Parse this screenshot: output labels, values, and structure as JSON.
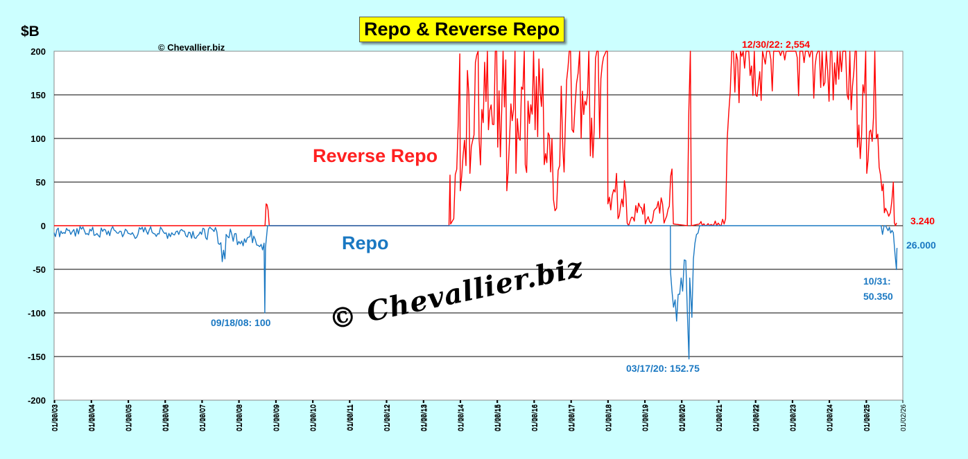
{
  "title": "Repo & Reverse Repo",
  "unit_label": "$B",
  "copyright": "© Chevallier.biz",
  "watermark": "© Chevallier.biz",
  "colors": {
    "reverse_repo": "#ff0000",
    "repo": "#1a78c2",
    "background": "#ccffff",
    "plot": "#ffffff",
    "title_box": "#ffff00"
  },
  "chart_data": {
    "type": "line",
    "title": "Repo & Reverse Repo",
    "ylabel": "$B",
    "ylim": [
      -200,
      200
    ],
    "yticks": [
      200,
      150,
      100,
      50,
      0,
      -50,
      -100,
      -150,
      -200
    ],
    "grid": true,
    "xlim": [
      "2003-01-02",
      "2026-01-02"
    ],
    "xticks": [
      "01/02/03",
      "01/06/03",
      "01/10/03",
      "01/02/04",
      "01/06/04",
      "01/10/04",
      "01/02/05",
      "01/06/05",
      "01/10/05",
      "01/02/06",
      "01/06/06",
      "01/10/06",
      "01/02/07",
      "01/06/07",
      "01/10/07",
      "01/02/08",
      "01/06/08",
      "01/10/08",
      "01/02/09",
      "01/06/09",
      "01/10/09",
      "01/02/10",
      "01/06/10",
      "01/10/10",
      "01/02/11",
      "01/06/11",
      "01/10/11",
      "01/02/12",
      "01/06/12",
      "01/10/12",
      "01/02/13",
      "01/06/13",
      "01/10/13",
      "01/02/14",
      "01/06/14",
      "01/10/14",
      "01/02/15",
      "01/06/15",
      "01/10/15",
      "01/02/16",
      "01/06/16",
      "01/10/16",
      "01/02/17",
      "01/06/17",
      "01/10/17",
      "01/02/18",
      "01/06/18",
      "01/10/18",
      "01/02/19",
      "01/06/19",
      "01/10/19",
      "01/02/20",
      "01/06/20",
      "01/10/20",
      "01/02/21",
      "01/06/21",
      "01/10/21",
      "01/02/22",
      "01/06/22",
      "01/10/22",
      "01/02/23",
      "01/06/23",
      "01/10/23",
      "01/02/24",
      "01/06/24",
      "01/10/24",
      "01/02/25",
      "01/06/25",
      "01/10/25",
      "01/02/26"
    ],
    "series": [
      {
        "name": "Reverse Repo",
        "color": "#ff0000",
        "points": [
          [
            "2003-01-02",
            0
          ],
          [
            "2008-09-20",
            0
          ],
          [
            "2008-10-01",
            25
          ],
          [
            "2008-10-10",
            24
          ],
          [
            "2008-10-20",
            18
          ],
          [
            "2008-11-01",
            0
          ],
          [
            "2013-09-15",
            0
          ],
          [
            "2013-09-25",
            58
          ],
          [
            "2013-10-01",
            2
          ],
          [
            "2013-11-01",
            8
          ],
          [
            "2013-12-31",
            197
          ],
          [
            "2014-01-05",
            40
          ],
          [
            "2014-02-01",
            80
          ],
          [
            "2014-03-31",
            150
          ],
          [
            "2014-04-10",
            60
          ],
          [
            "2014-06-30",
            200
          ],
          [
            "2014-07-10",
            100
          ],
          [
            "2014-09-30",
            200
          ],
          [
            "2014-10-10",
            110
          ],
          [
            "2014-12-31",
            200
          ],
          [
            "2015-01-10",
            90
          ],
          [
            "2015-03-31",
            190
          ],
          [
            "2015-04-10",
            40
          ],
          [
            "2015-06-30",
            200
          ],
          [
            "2015-07-10",
            60
          ],
          [
            "2015-09-30",
            200
          ],
          [
            "2015-10-10",
            70
          ],
          [
            "2015-12-31",
            200
          ],
          [
            "2016-01-15",
            110
          ],
          [
            "2016-03-31",
            180
          ],
          [
            "2016-04-15",
            70
          ],
          [
            "2016-06-30",
            100
          ],
          [
            "2016-07-15",
            30
          ],
          [
            "2016-08-15",
            20
          ],
          [
            "2016-09-30",
            160
          ],
          [
            "2016-10-15",
            90
          ],
          [
            "2016-12-31",
            200
          ],
          [
            "2017-01-15",
            110
          ],
          [
            "2017-03-31",
            200
          ],
          [
            "2017-04-15",
            100
          ],
          [
            "2017-06-30",
            200
          ],
          [
            "2017-07-15",
            80
          ],
          [
            "2017-09-30",
            200
          ],
          [
            "2017-10-15",
            100
          ],
          [
            "2017-12-31",
            200
          ],
          [
            "2018-01-05",
            25
          ],
          [
            "2018-03-31",
            60
          ],
          [
            "2018-04-15",
            8
          ],
          [
            "2018-06-30",
            40
          ],
          [
            "2018-07-15",
            3
          ],
          [
            "2018-12-31",
            25
          ],
          [
            "2019-01-10",
            2
          ],
          [
            "2019-06-30",
            25
          ],
          [
            "2019-07-15",
            3
          ],
          [
            "2019-10-01",
            65
          ],
          [
            "2019-10-15",
            2
          ],
          [
            "2020-03-01",
            0
          ],
          [
            "2020-03-31",
            200
          ],
          [
            "2020-04-10",
            0
          ],
          [
            "2020-06-30",
            2
          ],
          [
            "2020-12-31",
            3
          ],
          [
            "2021-03-15",
            8
          ],
          [
            "2021-03-31",
            100
          ],
          [
            "2021-04-15",
            130
          ],
          [
            "2021-05-15",
            200
          ],
          [
            "2021-06-01",
            200
          ],
          [
            "2024-06-15",
            200
          ],
          [
            "2024-06-30",
            150
          ],
          [
            "2024-09-30",
            200
          ],
          [
            "2024-10-10",
            90
          ],
          [
            "2024-12-31",
            200
          ],
          [
            "2025-01-10",
            60
          ],
          [
            "2025-03-31",
            200
          ],
          [
            "2025-04-15",
            100
          ],
          [
            "2025-06-10",
            40
          ],
          [
            "2025-07-15",
            20
          ],
          [
            "2025-09-01",
            15
          ],
          [
            "2025-09-30",
            50
          ],
          [
            "2025-10-10",
            3.24
          ],
          [
            "2025-11-01",
            3.24
          ]
        ]
      },
      {
        "name": "Repo",
        "color": "#1a78c2",
        "points": [
          [
            "2003-01-02",
            -8
          ],
          [
            "2003-06-01",
            -5
          ],
          [
            "2003-08-01",
            -12
          ],
          [
            "2003-10-01",
            -4
          ],
          [
            "2004-03-01",
            -9
          ],
          [
            "2004-09-01",
            -6
          ],
          [
            "2005-02-01",
            -10
          ],
          [
            "2005-08-01",
            -5
          ],
          [
            "2006-01-01",
            -9
          ],
          [
            "2006-07-01",
            -6
          ],
          [
            "2007-01-01",
            -10
          ],
          [
            "2007-06-01",
            -7
          ],
          [
            "2007-08-20",
            -38
          ],
          [
            "2007-09-01",
            -10
          ],
          [
            "2008-03-01",
            -15
          ],
          [
            "2008-06-01",
            -12
          ],
          [
            "2008-09-10",
            -20
          ],
          [
            "2008-09-18",
            -100
          ],
          [
            "2008-09-25",
            -25
          ],
          [
            "2008-10-15",
            0
          ],
          [
            "2019-09-15",
            0
          ],
          [
            "2019-09-17",
            -53
          ],
          [
            "2019-10-01",
            -75
          ],
          [
            "2019-11-01",
            -85
          ],
          [
            "2019-12-31",
            -60
          ],
          [
            "2020-01-15",
            -75
          ],
          [
            "2020-02-15",
            -40
          ],
          [
            "2020-03-17",
            -152.75
          ],
          [
            "2020-03-25",
            -60
          ],
          [
            "2020-04-15",
            -105
          ],
          [
            "2020-05-15",
            -20
          ],
          [
            "2020-07-01",
            0
          ],
          [
            "2025-06-01",
            0
          ],
          [
            "2025-06-15",
            -10
          ],
          [
            "2025-07-01",
            0
          ],
          [
            "2025-09-30",
            -8
          ],
          [
            "2025-10-31",
            -50.35
          ],
          [
            "2025-11-05",
            -26
          ],
          [
            "2025-11-10",
            -26
          ]
        ]
      }
    ],
    "annotations": {
      "reverse_repo_label": "Reverse Repo",
      "repo_label": "Repo",
      "peak_rrp": "12/30/22: 2,554",
      "last_rrp": "3.240",
      "last_repo": "26.000",
      "repo_2008": "09/18/08: 100",
      "repo_2020": "03/17/20: 152.75",
      "repo_2025_date": "10/31:",
      "repo_2025_value": "50.350"
    }
  }
}
